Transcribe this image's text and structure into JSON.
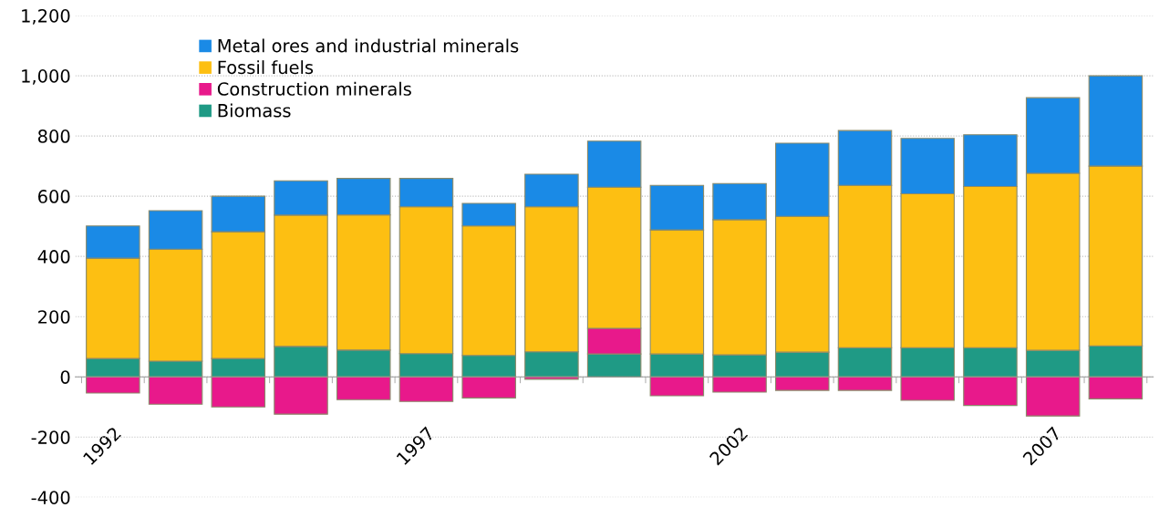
{
  "chart_data": {
    "type": "bar",
    "stacked": true,
    "categories": [
      "1992",
      null,
      null,
      null,
      null,
      "1997",
      null,
      null,
      null,
      null,
      "2002",
      null,
      null,
      null,
      null,
      "2007",
      null
    ],
    "series": [
      {
        "name": "Biomass",
        "color": "#1f9a85",
        "values": [
          61,
          52,
          61,
          101,
          89,
          77,
          71,
          83,
          76,
          76,
          73,
          82,
          97,
          97,
          97,
          88,
          103
        ]
      },
      {
        "name": "Construction minerals",
        "color": "#e8198b",
        "values": [
          -54,
          -91,
          -100,
          -124,
          -76,
          -82,
          -70,
          -8,
          85,
          -63,
          -51,
          -45,
          -45,
          -78,
          -95,
          -130,
          -73
        ]
      },
      {
        "name": "Fossil fuels",
        "color": "#fdbf12",
        "values": [
          333,
          372,
          421,
          436,
          449,
          488,
          430,
          482,
          469,
          412,
          449,
          451,
          539,
          511,
          535,
          588,
          597
        ]
      },
      {
        "name": "Metal ores and industrial minerals",
        "color": "#1a8ae6",
        "values": [
          107,
          128,
          118,
          114,
          121,
          94,
          75,
          108,
          153,
          148,
          120,
          243,
          182,
          184,
          172,
          251,
          300
        ]
      }
    ],
    "ylim": [
      -400,
      1200
    ],
    "yticks": [
      -400,
      -200,
      0,
      200,
      400,
      600,
      800,
      {
        "value": 1000,
        "label": "1,000"
      },
      {
        "value": 1200,
        "label": "1,200"
      }
    ],
    "grid": "y",
    "legend": "top left"
  }
}
